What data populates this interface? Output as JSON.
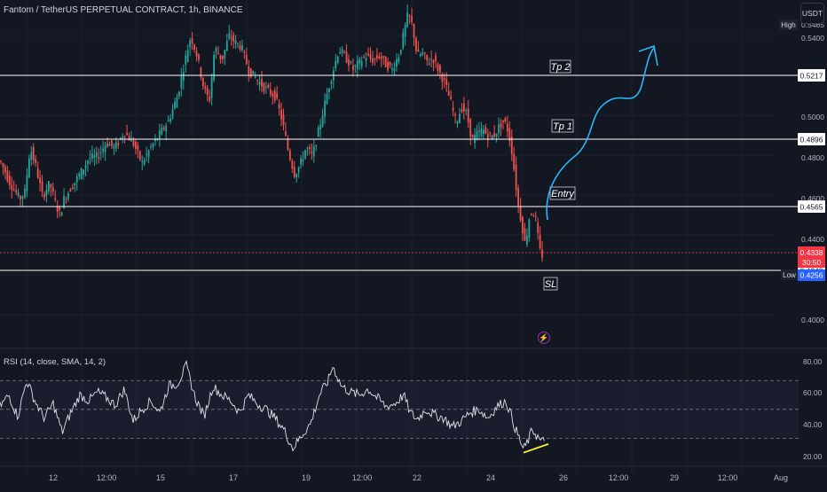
{
  "header": {
    "symbol": "Fantom / TetherUS PERPETUAL CONTRACT, 1h, BINANCE",
    "currency": "USDT"
  },
  "chart_data": [
    {
      "type": "candlestick",
      "title": "Fantom / TetherUS PERPETUAL CONTRACT, 1h, BINANCE",
      "ylim": [
        0.392,
        0.548
      ],
      "y_ticks": [
        "0.5400",
        "0.5000",
        "0.4800",
        "0.4600",
        "0.4400",
        "0.4000"
      ],
      "x_ticks": [
        "12",
        "12:00",
        "15",
        "17",
        "19",
        "12:00",
        "22",
        "24",
        "26",
        "12:00",
        "29",
        "12:00",
        "Aug"
      ],
      "levels": [
        {
          "label": "Tp 2",
          "price": "0.5217",
          "value": 0.5217
        },
        {
          "label": "Tp 1",
          "price": "0.4896",
          "value": 0.4896
        },
        {
          "label": "Entry",
          "price": "0.4565",
          "value": 0.4565
        },
        {
          "label": "SL",
          "price": "0.4249",
          "value": 0.4249
        }
      ],
      "badges": {
        "high_label": "High",
        "high_price": "0.5465",
        "current_price": "0.4338",
        "countdown": "30:50",
        "low_label": "Low",
        "low_price": "0.4256"
      },
      "key_points": [
        [
          0,
          0.476
        ],
        [
          6,
          0.471
        ],
        [
          10,
          0.467
        ],
        [
          16,
          0.463
        ],
        [
          22,
          0.459
        ],
        [
          28,
          0.462
        ],
        [
          34,
          0.482
        ],
        [
          40,
          0.474
        ],
        [
          48,
          0.46
        ],
        [
          56,
          0.466
        ],
        [
          64,
          0.455
        ],
        [
          68,
          0.452
        ],
        [
          72,
          0.459
        ],
        [
          80,
          0.464
        ],
        [
          90,
          0.47
        ],
        [
          100,
          0.477
        ],
        [
          110,
          0.478
        ],
        [
          120,
          0.484
        ],
        [
          130,
          0.482
        ],
        [
          140,
          0.489
        ],
        [
          150,
          0.484
        ],
        [
          160,
          0.475
        ],
        [
          170,
          0.482
        ],
        [
          180,
          0.488
        ],
        [
          190,
          0.494
        ],
        [
          200,
          0.505
        ],
        [
          208,
          0.52
        ],
        [
          215,
          0.532
        ],
        [
          222,
          0.523
        ],
        [
          230,
          0.508
        ],
        [
          236,
          0.503
        ],
        [
          242,
          0.527
        ],
        [
          250,
          0.521
        ],
        [
          258,
          0.532
        ],
        [
          265,
          0.529
        ],
        [
          272,
          0.527
        ],
        [
          280,
          0.517
        ],
        [
          290,
          0.512
        ],
        [
          300,
          0.508
        ],
        [
          310,
          0.505
        ],
        [
          318,
          0.494
        ],
        [
          325,
          0.48
        ],
        [
          332,
          0.47
        ],
        [
          338,
          0.474
        ],
        [
          345,
          0.482
        ],
        [
          352,
          0.478
        ],
        [
          360,
          0.491
        ],
        [
          368,
          0.505
        ],
        [
          375,
          0.516
        ],
        [
          382,
          0.526
        ],
        [
          390,
          0.522
        ],
        [
          398,
          0.517
        ],
        [
          405,
          0.52
        ],
        [
          412,
          0.523
        ],
        [
          420,
          0.521
        ],
        [
          428,
          0.523
        ],
        [
          435,
          0.519
        ],
        [
          442,
          0.517
        ],
        [
          450,
          0.524
        ],
        [
          455,
          0.533
        ],
        [
          460,
          0.542
        ],
        [
          465,
          0.536
        ],
        [
          470,
          0.523
        ],
        [
          476,
          0.524
        ],
        [
          482,
          0.52
        ],
        [
          488,
          0.522
        ],
        [
          495,
          0.516
        ],
        [
          502,
          0.51
        ],
        [
          508,
          0.502
        ],
        [
          514,
          0.493
        ],
        [
          520,
          0.5
        ],
        [
          526,
          0.497
        ],
        [
          532,
          0.485
        ],
        [
          538,
          0.488
        ],
        [
          544,
          0.49
        ],
        [
          550,
          0.487
        ],
        [
          556,
          0.487
        ],
        [
          562,
          0.491
        ],
        [
          568,
          0.494
        ],
        [
          572,
          0.49
        ],
        [
          576,
          0.483
        ],
        [
          580,
          0.47
        ],
        [
          584,
          0.456
        ],
        [
          588,
          0.448
        ],
        [
          592,
          0.438
        ],
        [
          596,
          0.45
        ],
        [
          600,
          0.454
        ],
        [
          604,
          0.449
        ],
        [
          608,
          0.436
        ],
        [
          612,
          0.433
        ]
      ]
    },
    {
      "type": "line",
      "title": "RSI (14, close, SMA, 14, 2)",
      "ylim": [
        13,
        88
      ],
      "y_ticks": [
        "80.00",
        "60.00",
        "40.00",
        "20.00"
      ],
      "bands": [
        70,
        50,
        30
      ],
      "key_points": [
        [
          0,
          52
        ],
        [
          10,
          60
        ],
        [
          20,
          45
        ],
        [
          30,
          70
        ],
        [
          40,
          55
        ],
        [
          50,
          44
        ],
        [
          60,
          54
        ],
        [
          70,
          34
        ],
        [
          80,
          48
        ],
        [
          90,
          60
        ],
        [
          100,
          56
        ],
        [
          110,
          62
        ],
        [
          120,
          58
        ],
        [
          130,
          53
        ],
        [
          140,
          64
        ],
        [
          150,
          42
        ],
        [
          160,
          50
        ],
        [
          170,
          56
        ],
        [
          180,
          48
        ],
        [
          190,
          66
        ],
        [
          200,
          68
        ],
        [
          210,
          80
        ],
        [
          220,
          58
        ],
        [
          230,
          45
        ],
        [
          240,
          66
        ],
        [
          250,
          60
        ],
        [
          260,
          56
        ],
        [
          270,
          48
        ],
        [
          280,
          60
        ],
        [
          290,
          54
        ],
        [
          300,
          50
        ],
        [
          310,
          44
        ],
        [
          320,
          36
        ],
        [
          330,
          23
        ],
        [
          340,
          32
        ],
        [
          350,
          40
        ],
        [
          360,
          60
        ],
        [
          370,
          70
        ],
        [
          375,
          80
        ],
        [
          385,
          66
        ],
        [
          395,
          62
        ],
        [
          405,
          60
        ],
        [
          415,
          64
        ],
        [
          425,
          58
        ],
        [
          435,
          52
        ],
        [
          445,
          54
        ],
        [
          455,
          60
        ],
        [
          462,
          48
        ],
        [
          470,
          43
        ],
        [
          480,
          50
        ],
        [
          490,
          46
        ],
        [
          500,
          44
        ],
        [
          510,
          38
        ],
        [
          520,
          42
        ],
        [
          530,
          48
        ],
        [
          540,
          50
        ],
        [
          550,
          44
        ],
        [
          560,
          52
        ],
        [
          570,
          56
        ],
        [
          575,
          48
        ],
        [
          580,
          38
        ],
        [
          585,
          30
        ],
        [
          590,
          22
        ],
        [
          595,
          28
        ],
        [
          600,
          36
        ],
        [
          605,
          32
        ],
        [
          610,
          27
        ],
        [
          614,
          29
        ]
      ],
      "divergence_line": [
        [
          590,
          20
        ],
        [
          618,
          26
        ]
      ]
    }
  ]
}
